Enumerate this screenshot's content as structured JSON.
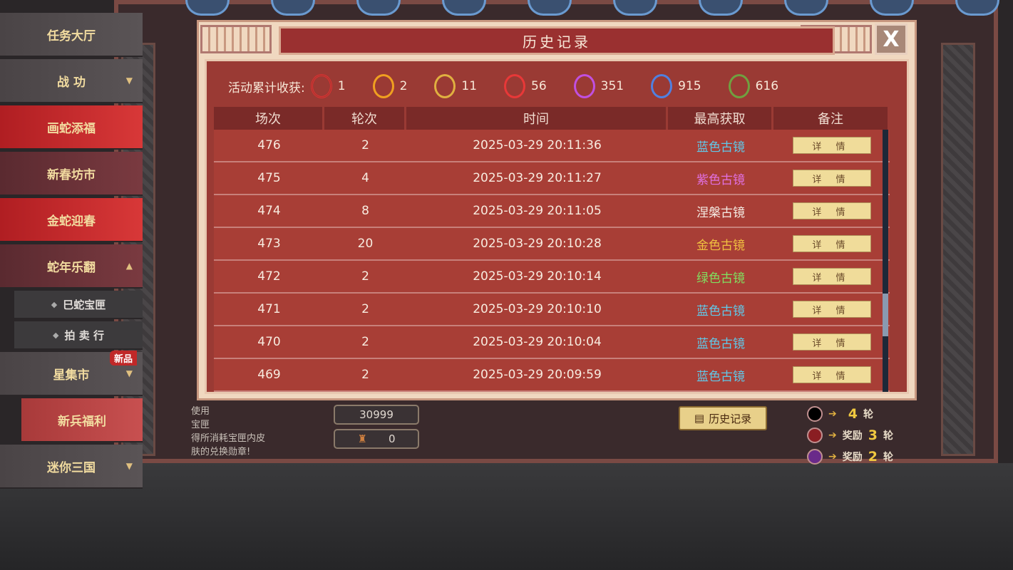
{
  "sidebar": {
    "items": [
      {
        "label": "任务大厅",
        "style": "plain"
      },
      {
        "label": "战 功",
        "style": "plain",
        "chevron": "▼"
      },
      {
        "label": "画蛇添福",
        "style": "red"
      },
      {
        "label": "新春坊市",
        "style": "dark"
      },
      {
        "label": "金蛇迎春",
        "style": "red"
      },
      {
        "label": "蛇年乐翻",
        "style": "dark",
        "chevron": "▲"
      },
      {
        "label": "巳蛇宝匣",
        "style": "sub"
      },
      {
        "label": "拍 卖 行",
        "style": "sub"
      },
      {
        "label": "星集市",
        "style": "plain",
        "chevron": "▼",
        "badge": "新品"
      },
      {
        "label": "新兵福利",
        "style": "pink"
      },
      {
        "label": "迷你三国",
        "style": "plain",
        "chevron": "▼"
      }
    ]
  },
  "background": {
    "info_lines": [
      "使用",
      "宝匣",
      "得所消耗宝匣内皮",
      "肤的兑换勋章!"
    ],
    "field_1": "30999",
    "field_2": "0",
    "history_button": "历史记录",
    "rewards": [
      {
        "prefix": "",
        "num": "4",
        "suffix": "轮",
        "color": "#000000"
      },
      {
        "prefix": "奖励",
        "num": "3",
        "suffix": "轮",
        "color": "#8a1e22"
      },
      {
        "prefix": "奖励",
        "num": "2",
        "suffix": "轮",
        "color": "#6a2a8a"
      }
    ]
  },
  "modal": {
    "title": "历史记录",
    "close_label": "X",
    "summary_label": "活动累计收获:",
    "stats": [
      {
        "icon": "red-ornate-ring-icon",
        "color": "#e03030",
        "count": "1"
      },
      {
        "icon": "orange-ring-icon",
        "color": "#f0a020",
        "count": "2"
      },
      {
        "icon": "gold-ring-icon",
        "color": "#e0b040",
        "count": "11"
      },
      {
        "icon": "red-ring-icon",
        "color": "#e83838",
        "count": "56"
      },
      {
        "icon": "purple-ring-icon",
        "color": "#c050e0",
        "count": "351"
      },
      {
        "icon": "blue-ring-icon",
        "color": "#5080e0",
        "count": "915"
      },
      {
        "icon": "green-ring-icon",
        "color": "#70a040",
        "count": "616"
      }
    ],
    "columns": [
      "场次",
      "轮次",
      "时间",
      "最高获取",
      "备注"
    ],
    "detail_label": "详 情",
    "rows": [
      {
        "match": "476",
        "round": "2",
        "time": "2025-03-29 20:11:36",
        "best": "蓝色古镜",
        "color": "#60c8e8"
      },
      {
        "match": "475",
        "round": "4",
        "time": "2025-03-29 20:11:27",
        "best": "紫色古镜",
        "color": "#e070e0"
      },
      {
        "match": "474",
        "round": "8",
        "time": "2025-03-29 20:11:05",
        "best": "涅槃古镜",
        "color": "#f4ece4"
      },
      {
        "match": "473",
        "round": "20",
        "time": "2025-03-29 20:10:28",
        "best": "金色古镜",
        "color": "#f0c040"
      },
      {
        "match": "472",
        "round": "2",
        "time": "2025-03-29 20:10:14",
        "best": "绿色古镜",
        "color": "#80e060"
      },
      {
        "match": "471",
        "round": "2",
        "time": "2025-03-29 20:10:10",
        "best": "蓝色古镜",
        "color": "#60c8e8"
      },
      {
        "match": "470",
        "round": "2",
        "time": "2025-03-29 20:10:04",
        "best": "蓝色古镜",
        "color": "#60c8e8"
      },
      {
        "match": "469",
        "round": "2",
        "time": "2025-03-29 20:09:59",
        "best": "蓝色古镜",
        "color": "#60c8e8"
      }
    ]
  }
}
